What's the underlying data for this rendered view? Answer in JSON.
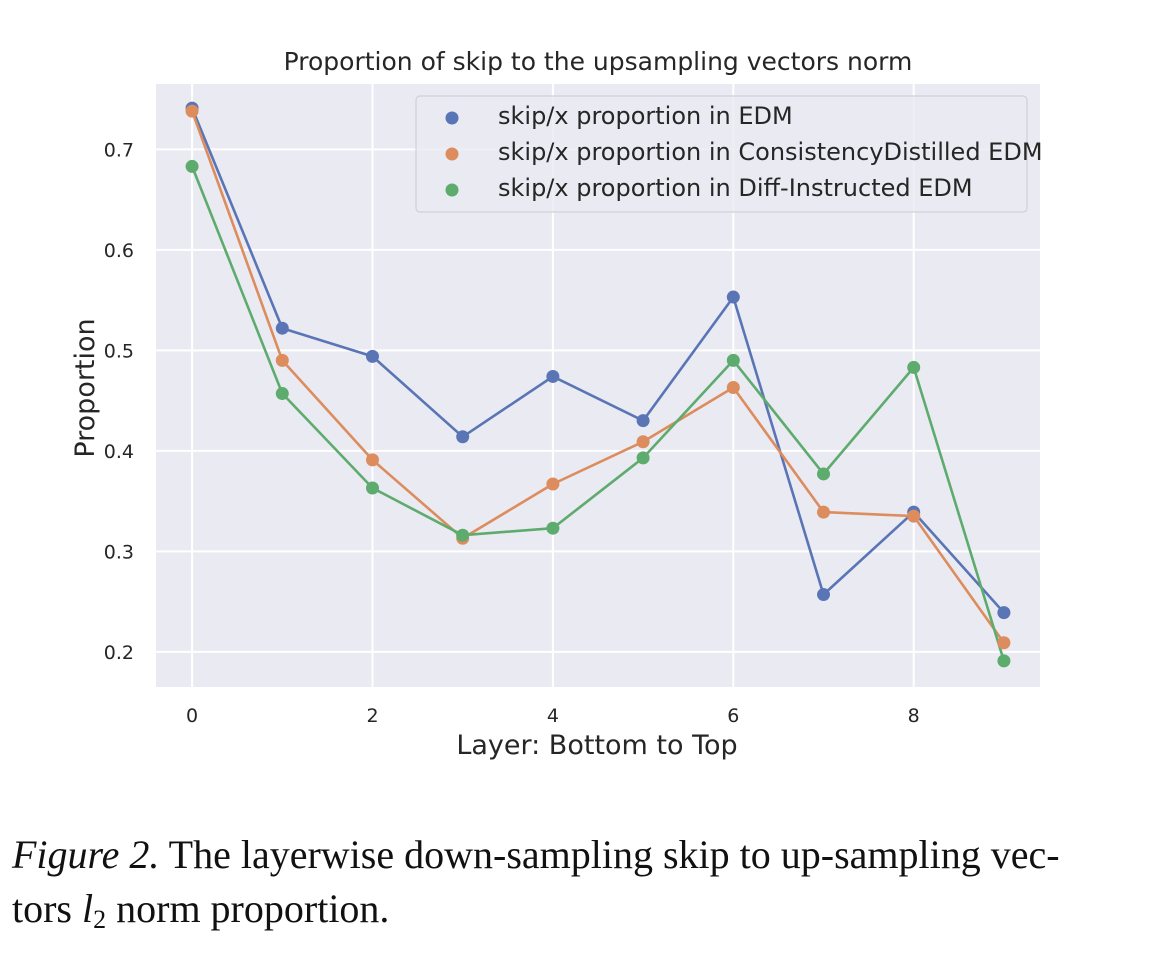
{
  "chart_data": {
    "type": "line",
    "title": "Proportion of skip to the upsampling vectors norm",
    "xlabel": "Layer: Bottom to Top",
    "ylabel": "Proportion",
    "xlim": [
      -0.4,
      9.4
    ],
    "ylim": [
      0.165,
      0.765
    ],
    "x_ticks": [
      0,
      2,
      4,
      6,
      8
    ],
    "y_ticks": [
      0.2,
      0.3,
      0.4,
      0.5,
      0.6,
      0.7
    ],
    "grid": true,
    "legend_position": "top-right",
    "x": [
      0,
      1,
      2,
      3,
      4,
      5,
      6,
      7,
      8,
      9
    ],
    "series": [
      {
        "name": "skip/x proportion in EDM",
        "color": "#5975b6",
        "values": [
          0.741,
          0.522,
          0.494,
          0.414,
          0.474,
          0.43,
          0.553,
          0.257,
          0.339,
          0.239
        ]
      },
      {
        "name": "skip/x proportion in ConsistencyDistilled EDM",
        "color": "#dc8c5d",
        "values": [
          0.738,
          0.49,
          0.391,
          0.313,
          0.367,
          0.409,
          0.463,
          0.339,
          0.335,
          0.209
        ]
      },
      {
        "name": "skip/x proportion in Diff-Instructed EDM",
        "color": "#5eab6e",
        "values": [
          0.683,
          0.457,
          0.363,
          0.316,
          0.323,
          0.393,
          0.49,
          0.377,
          0.483,
          0.191
        ]
      }
    ]
  },
  "caption": {
    "label": "Figure 2.",
    "text_part1": " The layerwise down-sampling skip to up-sampling vec-",
    "text_part2": "tors ",
    "math_symbol": "l",
    "math_subscript": "2",
    "text_part3": " norm proportion."
  }
}
